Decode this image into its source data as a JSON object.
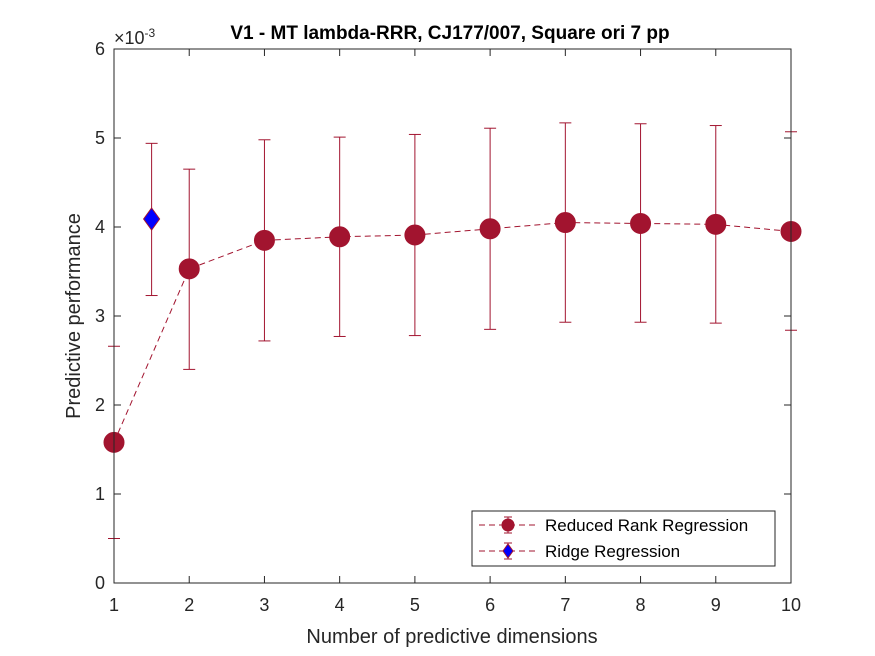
{
  "chart_data": {
    "type": "line",
    "title": "V1 - MT lambda-RRR, CJ177/007, Square ori 7 pp",
    "xlabel": "Number of predictive dimensions",
    "ylabel": "Predictive performance",
    "y_exponent_label": "×10",
    "y_exponent": "-3",
    "xlim": [
      1,
      10
    ],
    "ylim": [
      0,
      6
    ],
    "x_ticks": [
      "1",
      "2",
      "3",
      "4",
      "5",
      "6",
      "7",
      "8",
      "9",
      "10"
    ],
    "y_ticks": [
      "0",
      "1",
      "2",
      "3",
      "4",
      "5",
      "6"
    ],
    "legend_position": "bottom-right",
    "series": [
      {
        "name": "Reduced Rank Regression",
        "color": "#A2142F",
        "marker": "circle",
        "line_style": "dashed",
        "x": [
          1,
          2,
          3,
          4,
          5,
          6,
          7,
          8,
          9,
          10
        ],
        "y": [
          1.58,
          3.53,
          3.85,
          3.89,
          3.91,
          3.98,
          4.05,
          4.04,
          4.03,
          3.95
        ],
        "err_low": [
          0.5,
          2.4,
          2.72,
          2.77,
          2.78,
          2.85,
          2.93,
          2.93,
          2.92,
          2.84
        ],
        "err_high": [
          2.66,
          4.65,
          4.98,
          5.01,
          5.04,
          5.11,
          5.17,
          5.16,
          5.14,
          5.07
        ]
      },
      {
        "name": "Ridge Regression",
        "color": "#0000FF",
        "marker": "diamond",
        "line_style": "dashed",
        "x": [
          1.5
        ],
        "y": [
          4.09
        ],
        "err_low": [
          3.23
        ],
        "err_high": [
          4.94
        ]
      }
    ]
  }
}
